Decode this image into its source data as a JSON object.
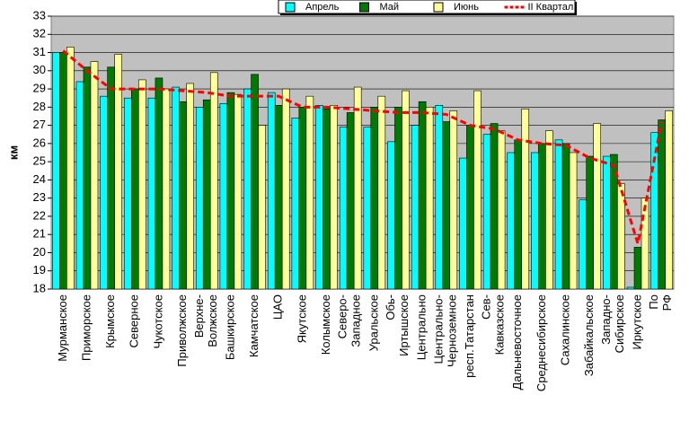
{
  "chart_data": {
    "type": "bar",
    "y_label": "км",
    "categories": [
      "Мурманское",
      "Приморское",
      "Крымское",
      "Северное",
      "Чукотское",
      "Приволжское",
      "Верхне- Волжское",
      "Башкирское",
      "Камчатское",
      "ЦАО",
      "Якутское",
      "Колымское",
      "Северо- Западное",
      "Уральское",
      "Обь- Иртышское",
      "Центрально",
      "Центрально- Черноземное",
      "респ.Татарстан",
      "Сев- Кавказское",
      "Дальневосточное",
      "Среднесибирское",
      "Сахалинское",
      "Забайкальское",
      "Западно- Сибирское",
      "Иркутское",
      "По РФ"
    ],
    "series": [
      {
        "name": "Апрель",
        "color": "#00ffff",
        "values": [
          31.0,
          29.4,
          28.6,
          28.5,
          28.5,
          29.1,
          28.0,
          28.2,
          29.0,
          28.8,
          27.4,
          28.1,
          26.9,
          26.9,
          26.1,
          27.0,
          28.1,
          25.2,
          26.5,
          25.5,
          25.5,
          26.2,
          22.9,
          25.3,
          18.1,
          26.6
        ]
      },
      {
        "name": "Май",
        "color": "#007a00",
        "values": [
          31.0,
          30.2,
          30.2,
          29.0,
          29.6,
          28.3,
          28.4,
          28.8,
          29.8,
          28.1,
          28.0,
          27.9,
          27.7,
          28.0,
          28.0,
          28.3,
          27.2,
          27.0,
          27.1,
          26.2,
          26.0,
          26.0,
          25.3,
          25.4,
          20.3,
          27.3
        ]
      },
      {
        "name": "Июнь",
        "color": "#ffff99",
        "values": [
          31.3,
          30.5,
          30.9,
          29.5,
          29.0,
          29.3,
          29.9,
          28.7,
          27.0,
          29.0,
          28.6,
          28.1,
          29.1,
          28.6,
          28.9,
          28.0,
          27.8,
          28.9,
          26.7,
          27.9,
          26.7,
          25.5,
          27.1,
          23.8,
          23.0,
          27.8
        ]
      },
      {
        "name": "II Квартал",
        "type": "line",
        "color": "#ff0000",
        "values": [
          31.1,
          30.0,
          29.0,
          29.0,
          29.0,
          28.9,
          28.8,
          28.6,
          28.6,
          28.6,
          28.0,
          28.0,
          27.9,
          27.8,
          27.7,
          27.7,
          27.6,
          27.0,
          26.8,
          26.2,
          26.0,
          25.9,
          25.2,
          24.8,
          20.5,
          27.2
        ]
      }
    ],
    "ylim": [
      18,
      33
    ],
    "yticks": [
      18,
      19,
      20,
      21,
      22,
      23,
      24,
      25,
      26,
      27,
      28,
      29,
      30,
      31,
      32,
      33
    ],
    "grid": true,
    "legend": "top"
  }
}
